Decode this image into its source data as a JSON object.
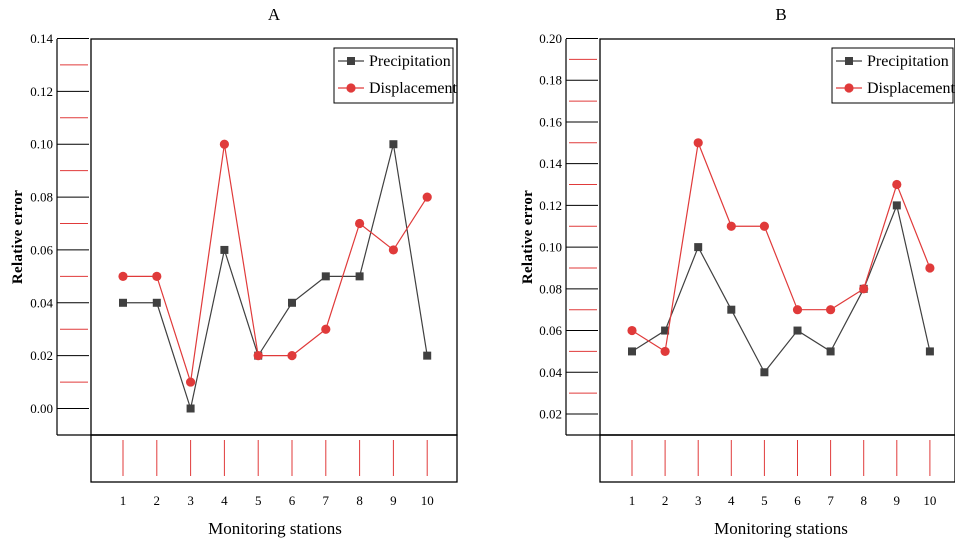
{
  "chart_data": [
    {
      "type": "line",
      "title": "A",
      "xlabel": "Monitoring stations",
      "ylabel": "Relative error",
      "categories": [
        "1",
        "2",
        "3",
        "4",
        "5",
        "6",
        "7",
        "8",
        "9",
        "10"
      ],
      "yticks": [
        "0.00",
        "0.02",
        "0.04",
        "0.06",
        "0.08",
        "0.10",
        "0.12",
        "0.14"
      ],
      "ylim": [
        -0.01,
        0.14
      ],
      "legend_position": "top-right",
      "series": [
        {
          "name": "Precipitation",
          "color": "#404040",
          "marker": "square",
          "values": [
            0.04,
            0.04,
            0.0,
            0.06,
            0.02,
            0.04,
            0.05,
            0.05,
            0.1,
            0.02
          ]
        },
        {
          "name": "Displacement",
          "color": "#e03a3a",
          "marker": "circle",
          "values": [
            0.05,
            0.05,
            0.01,
            0.1,
            0.02,
            0.02,
            0.03,
            0.07,
            0.06,
            0.08
          ]
        }
      ]
    },
    {
      "type": "line",
      "title": "B",
      "xlabel": "Monitoring stations",
      "ylabel": "Relative error",
      "categories": [
        "1",
        "2",
        "3",
        "4",
        "5",
        "6",
        "7",
        "8",
        "9",
        "10"
      ],
      "yticks": [
        "0.02",
        "0.04",
        "0.06",
        "0.08",
        "0.10",
        "0.12",
        "0.14",
        "0.16",
        "0.18",
        "0.20"
      ],
      "ylim": [
        0.01,
        0.2
      ],
      "legend_position": "top-right",
      "series": [
        {
          "name": "Precipitation",
          "color": "#404040",
          "marker": "square",
          "values": [
            0.05,
            0.06,
            0.1,
            0.07,
            0.04,
            0.06,
            0.05,
            0.08,
            0.12,
            0.05
          ]
        },
        {
          "name": "Displacement",
          "color": "#e03a3a",
          "marker": "circle",
          "values": [
            0.06,
            0.05,
            0.15,
            0.11,
            0.11,
            0.07,
            0.07,
            0.08,
            0.13,
            0.09
          ]
        }
      ]
    }
  ]
}
